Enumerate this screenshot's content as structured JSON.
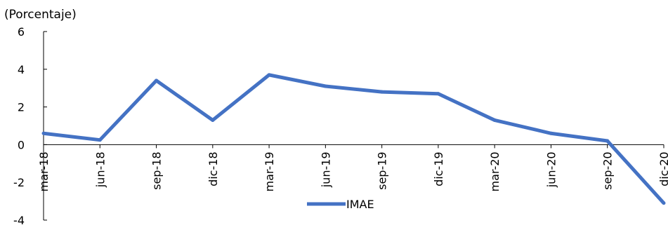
{
  "chart_data": {
    "type": "line",
    "subtitle": "(Porcentaje)",
    "categories": [
      "mar-18",
      "jun-18",
      "sep-18",
      "dic-18",
      "mar-19",
      "jun-19",
      "sep-19",
      "dic-19",
      "mar-20",
      "jun-20",
      "sep-20",
      "dic-20"
    ],
    "series": [
      {
        "name": "IMAE",
        "values": [
          0.6,
          0.25,
          3.4,
          1.3,
          3.7,
          3.1,
          2.8,
          2.7,
          1.3,
          0.6,
          0.2,
          -3.1
        ]
      }
    ],
    "ylim": [
      -4,
      6
    ],
    "yticks": [
      -4,
      -2,
      0,
      2,
      4,
      6
    ],
    "legend_position": "bottom",
    "grid": false,
    "colors": {
      "series": "#4472C4",
      "axis": "#000000"
    }
  }
}
